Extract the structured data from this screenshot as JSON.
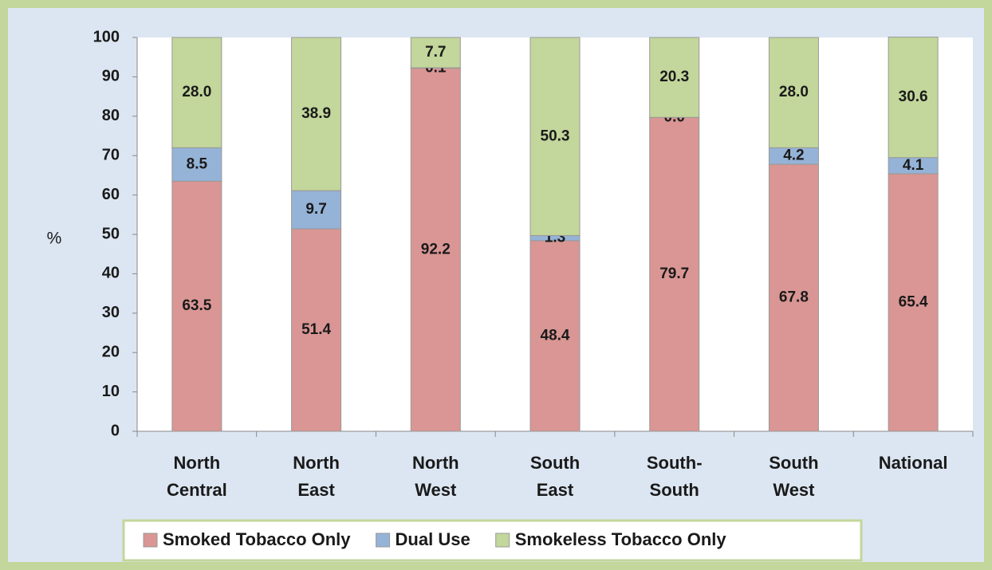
{
  "chart_data": {
    "type": "stacked_bar",
    "categories": [
      "North Central",
      "North East",
      "North West",
      "South East",
      "South-South",
      "South West",
      "National"
    ],
    "y_label": "%",
    "ylim": [
      0,
      100
    ],
    "yticks": [
      0,
      10,
      20,
      30,
      40,
      50,
      60,
      70,
      80,
      90,
      100
    ],
    "legend": "bottom",
    "series": [
      {
        "name": "Smoked Tobacco Only",
        "color": "#d99694",
        "values": [
          63.5,
          51.4,
          92.2,
          48.4,
          79.7,
          67.8,
          65.4
        ],
        "value_labels": [
          "63.5",
          "51.4",
          "92.2",
          "48.4",
          "79.7",
          "67.8",
          "65.4"
        ]
      },
      {
        "name": "Dual Use",
        "color": "#95b3d7",
        "values": [
          8.5,
          9.7,
          0.1,
          1.3,
          0.0,
          4.2,
          4.1
        ],
        "value_labels": [
          "8.5",
          "9.7",
          "0.1",
          "1.3",
          "0.0",
          "4.2",
          "4.1"
        ]
      },
      {
        "name": "Smokeless Tobacco Only",
        "color": "#c3d69b",
        "values": [
          28.0,
          38.9,
          7.7,
          50.3,
          20.3,
          28.0,
          30.6
        ],
        "value_labels": [
          "28.0",
          "38.9",
          "7.7",
          "50.3",
          "20.3",
          "28.0",
          "30.6"
        ]
      }
    ]
  }
}
